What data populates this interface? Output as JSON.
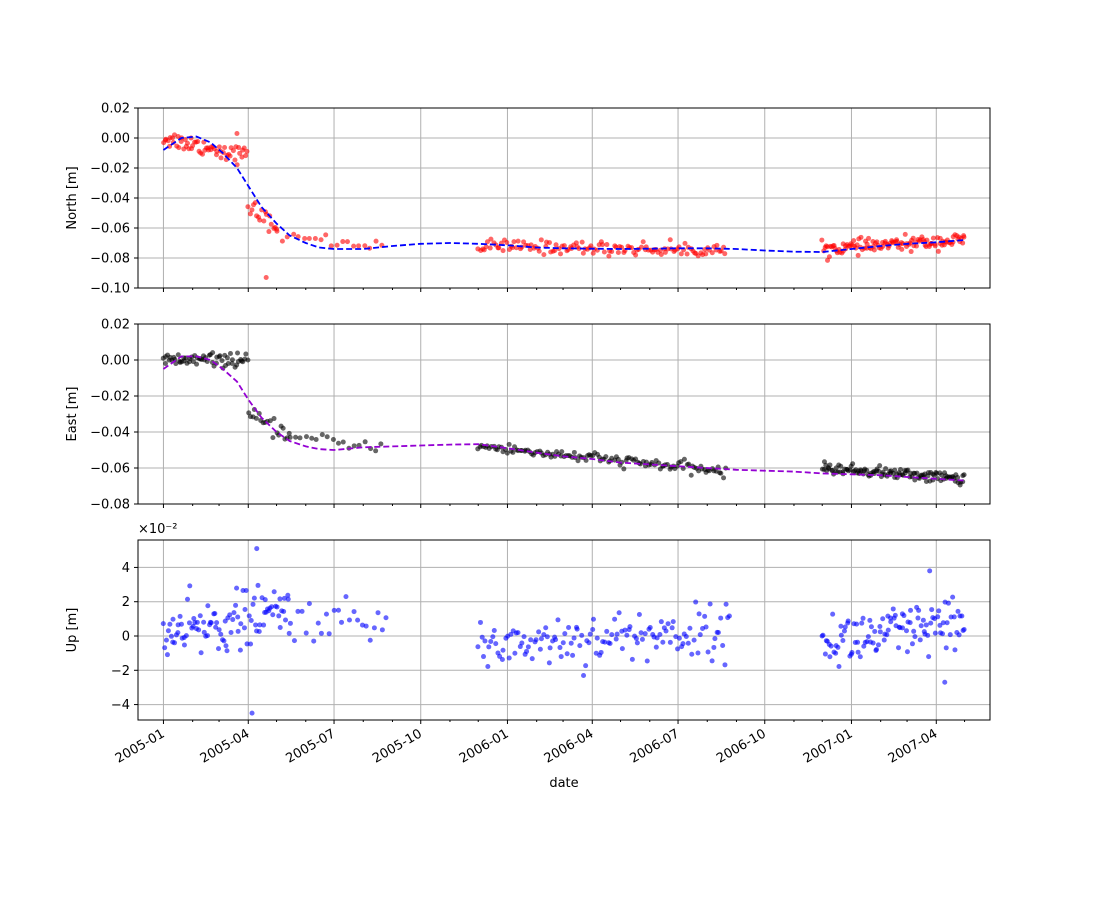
{
  "chart_data": [
    {
      "type": "scatter",
      "ylabel": "North [m]",
      "ylim": [
        -0.1,
        0.02
      ],
      "yticks": [
        0.02,
        0.0,
        -0.02,
        -0.04,
        -0.06,
        -0.08,
        -0.1
      ],
      "ytick_labels": [
        "0.02",
        "0.00",
        "−0.02",
        "−0.04",
        "−0.06",
        "−0.08",
        "−0.10"
      ],
      "grid": true,
      "colors": {
        "points": "#ff0000",
        "fit": "#0000ff"
      },
      "fit_series": {
        "x": [
          "2005-01-01",
          "2005-01-20",
          "2005-02-05",
          "2005-02-20",
          "2005-03-05",
          "2005-03-20",
          "2005-04-01",
          "2005-04-15",
          "2005-05-01",
          "2005-05-15",
          "2005-06-01",
          "2005-06-15",
          "2005-07-01",
          "2005-08-01",
          "2005-09-01",
          "2005-10-01",
          "2005-11-01",
          "2005-12-01",
          "2006-01-01",
          "2006-02-01",
          "2006-03-01",
          "2006-04-01",
          "2006-05-01",
          "2006-06-01",
          "2006-07-01",
          "2006-08-01",
          "2006-09-01",
          "2006-10-01",
          "2006-11-01",
          "2006-12-01",
          "2007-01-01",
          "2007-02-01",
          "2007-03-01",
          "2007-04-01",
          "2007-05-01"
        ],
        "y": [
          -0.008,
          0.0,
          0.001,
          -0.003,
          -0.01,
          -0.02,
          -0.032,
          -0.046,
          -0.057,
          -0.065,
          -0.07,
          -0.073,
          -0.074,
          -0.074,
          -0.072,
          -0.0705,
          -0.07,
          -0.0705,
          -0.0715,
          -0.073,
          -0.0735,
          -0.0738,
          -0.074,
          -0.0738,
          -0.0735,
          -0.0735,
          -0.074,
          -0.075,
          -0.0758,
          -0.076,
          -0.074,
          -0.072,
          -0.0705,
          -0.0695,
          -0.068
        ]
      },
      "segments": [
        {
          "start": "2005-01-01",
          "end": "2005-03-31",
          "y_start": 0.0,
          "y_end": -0.012,
          "noise": 0.004,
          "n": 60
        },
        {
          "start": "2005-04-01",
          "end": "2005-05-01",
          "y_start": -0.045,
          "y_end": -0.06,
          "noise": 0.004,
          "n": 18
        },
        {
          "start": "2005-05-01",
          "end": "2005-08-20",
          "y_start": -0.065,
          "y_end": -0.072,
          "noise": 0.003,
          "n": 20
        },
        {
          "start": "2005-12-01",
          "end": "2006-08-20",
          "y_start": -0.072,
          "y_end": -0.075,
          "noise": 0.003,
          "n": 130
        },
        {
          "start": "2006-12-01",
          "end": "2007-05-01",
          "y_start": -0.074,
          "y_end": -0.068,
          "noise": 0.003,
          "n": 120
        }
      ],
      "outliers": [
        {
          "x": "2005-04-20",
          "y": -0.093
        },
        {
          "x": "2005-03-20",
          "y": 0.003
        }
      ]
    },
    {
      "type": "scatter",
      "ylabel": "East [m]",
      "ylim": [
        -0.08,
        0.02
      ],
      "yticks": [
        0.02,
        0.0,
        -0.02,
        -0.04,
        -0.06,
        -0.08
      ],
      "ytick_labels": [
        "0.02",
        "0.00",
        "−0.02",
        "−0.04",
        "−0.06",
        "−0.08"
      ],
      "grid": true,
      "colors": {
        "points": "#000000",
        "fit": "#9400d3"
      },
      "fit_series": {
        "x": [
          "2005-01-01",
          "2005-01-20",
          "2005-02-05",
          "2005-02-20",
          "2005-03-05",
          "2005-03-20",
          "2005-04-01",
          "2005-04-15",
          "2005-05-01",
          "2005-05-15",
          "2005-06-01",
          "2005-06-15",
          "2005-07-01",
          "2005-08-01",
          "2005-09-01",
          "2005-10-01",
          "2005-11-01",
          "2005-12-01",
          "2006-01-01",
          "2006-02-01",
          "2006-03-01",
          "2006-04-01",
          "2006-05-01",
          "2006-06-01",
          "2006-07-01",
          "2006-08-01",
          "2006-09-01",
          "2006-10-01",
          "2006-11-01",
          "2006-12-01",
          "2007-01-01",
          "2007-02-01",
          "2007-03-01",
          "2007-04-01",
          "2007-05-01"
        ],
        "y": [
          -0.005,
          0.002,
          0.002,
          0.0,
          -0.005,
          -0.012,
          -0.022,
          -0.032,
          -0.04,
          -0.045,
          -0.048,
          -0.0495,
          -0.05,
          -0.0485,
          -0.048,
          -0.0475,
          -0.047,
          -0.0468,
          -0.049,
          -0.0515,
          -0.0535,
          -0.055,
          -0.057,
          -0.058,
          -0.059,
          -0.06,
          -0.061,
          -0.0615,
          -0.062,
          -0.063,
          -0.0635,
          -0.064,
          -0.065,
          -0.066,
          -0.067
        ]
      },
      "segments": [
        {
          "start": "2005-01-01",
          "end": "2005-03-31",
          "y_start": 0.0,
          "y_end": 0.0,
          "noise": 0.0025,
          "n": 60
        },
        {
          "start": "2005-04-01",
          "end": "2005-05-15",
          "y_start": -0.031,
          "y_end": -0.042,
          "noise": 0.003,
          "n": 20
        },
        {
          "start": "2005-05-15",
          "end": "2005-08-20",
          "y_start": -0.043,
          "y_end": -0.048,
          "noise": 0.002,
          "n": 18
        },
        {
          "start": "2005-12-01",
          "end": "2006-08-20",
          "y_start": -0.048,
          "y_end": -0.062,
          "noise": 0.002,
          "n": 130
        },
        {
          "start": "2006-12-01",
          "end": "2007-05-01",
          "y_start": -0.06,
          "y_end": -0.066,
          "noise": 0.002,
          "n": 120
        }
      ],
      "outliers": []
    },
    {
      "type": "scatter",
      "ylabel": "Up [m]",
      "ylim": [
        -4.9,
        5.6
      ],
      "scale_label": "×10⁻²",
      "yticks": [
        4,
        2,
        0,
        -2,
        -4
      ],
      "ytick_labels": [
        "4",
        "2",
        "0",
        "−2",
        "−4"
      ],
      "grid": true,
      "colors": {
        "points": "#0000ff"
      },
      "segments": [
        {
          "start": "2005-01-01",
          "end": "2005-05-15",
          "y_start": 0.0,
          "y_end": 1.5,
          "noise": 1.1,
          "n": 100
        },
        {
          "start": "2005-05-15",
          "end": "2005-08-25",
          "y_start": 1.0,
          "y_end": 0.6,
          "noise": 0.8,
          "n": 25
        },
        {
          "start": "2005-12-01",
          "end": "2006-08-25",
          "y_start": -0.5,
          "y_end": 0.3,
          "noise": 1.0,
          "n": 140
        },
        {
          "start": "2006-12-01",
          "end": "2007-05-01",
          "y_start": -0.3,
          "y_end": 0.5,
          "noise": 1.1,
          "n": 110
        }
      ],
      "outliers": [
        {
          "x": "2005-04-10",
          "y": 5.1
        },
        {
          "x": "2005-04-05",
          "y": -4.5
        },
        {
          "x": "2007-03-25",
          "y": 3.8
        },
        {
          "x": "2007-04-10",
          "y": -2.7
        }
      ]
    }
  ],
  "x_axis": {
    "xlabel": "date",
    "xlim": [
      "2004-12-05",
      "2007-05-28"
    ],
    "major_ticks": [
      "2005-01-01",
      "2005-04-01",
      "2005-07-01",
      "2005-10-01",
      "2006-01-01",
      "2006-04-01",
      "2006-07-01",
      "2006-10-01",
      "2007-01-01",
      "2007-04-01"
    ],
    "tick_labels": [
      "2005-01",
      "2005-04",
      "2005-07",
      "2005-10",
      "2006-01",
      "2006-04",
      "2006-07",
      "2006-10",
      "2007-01",
      "2007-04"
    ]
  }
}
